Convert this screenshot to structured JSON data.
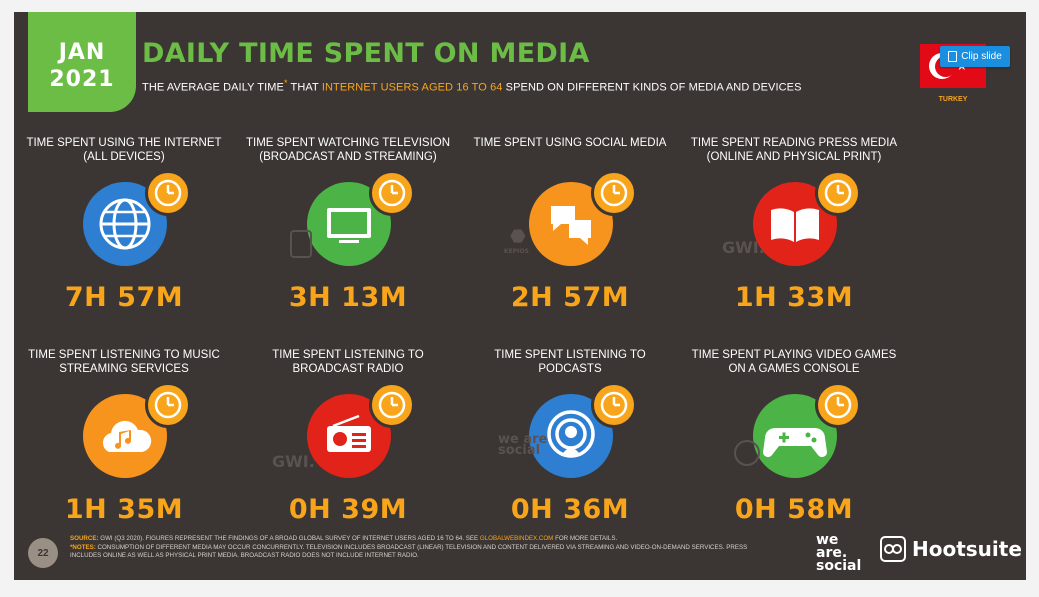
{
  "header": {
    "badge_month": "JAN",
    "badge_year": "2021",
    "title": "DAILY TIME SPENT ON MEDIA",
    "subtitle_part1": "THE AVERAGE DAILY TIME",
    "subtitle_star": "*",
    "subtitle_part2": " THAT ",
    "subtitle_highlight": "INTERNET USERS AGED 16 TO 64",
    "subtitle_part3": " SPEND ON DIFFERENT KINDS OF MEDIA AND DEVICES",
    "country": "TURKEY",
    "clip_button_label": "Clip slide"
  },
  "tiles": [
    {
      "label": "TIME SPENT USING THE INTERNET (ALL DEVICES)",
      "value": "7H 57M",
      "icon": "globe-icon",
      "color": "#2e7fd1"
    },
    {
      "label": "TIME SPENT WATCHING TELEVISION (BROADCAST AND STREAMING)",
      "value": "3H 13M",
      "icon": "television-icon",
      "color": "#4cb446"
    },
    {
      "label": "TIME SPENT USING SOCIAL MEDIA",
      "value": "2H 57M",
      "icon": "chat-bubbles-icon",
      "color": "#f7941d"
    },
    {
      "label": "TIME SPENT READING PRESS MEDIA (ONLINE AND PHYSICAL PRINT)",
      "value": "1H 33M",
      "icon": "open-book-icon",
      "color": "#e2231a"
    },
    {
      "label": "TIME SPENT LISTENING TO MUSIC STREAMING SERVICES",
      "value": "1H 35M",
      "icon": "cloud-music-icon",
      "color": "#f7941d"
    },
    {
      "label": "TIME SPENT LISTENING TO BROADCAST RADIO",
      "value": "0H 39M",
      "icon": "radio-icon",
      "color": "#e2231a"
    },
    {
      "label": "TIME SPENT LISTENING TO PODCASTS",
      "value": "0H 36M",
      "icon": "podcast-icon",
      "color": "#2e7fd1"
    },
    {
      "label": "TIME SPENT PLAYING VIDEO GAMES ON A GAMES CONSOLE",
      "value": "0H 58M",
      "icon": "gamepad-icon",
      "color": "#4cb446"
    }
  ],
  "watermarks": {
    "gwi_1": "GWI.",
    "gwi_2": "GWI.",
    "kepios": "KEPIOS",
    "wearesocial": "we are social"
  },
  "footer": {
    "page_number": "22",
    "source_key": "SOURCE:",
    "source_text": " GWI (Q3 2020). FIGURES REPRESENT THE FINDINGS OF A BROAD GLOBAL SURVEY OF INTERNET USERS AGED 16 TO 64. SEE ",
    "source_link": "GLOBALWEBINDEX.COM",
    "source_tail": " FOR MORE DETAILS.",
    "notes_key": "*NOTES:",
    "notes_text": " CONSUMPTION OF DIFFERENT MEDIA MAY OCCUR CONCURRENTLY. TELEVISION INCLUDES BROADCAST (LINEAR) TELEVISION AND CONTENT DELIVERED VIA STREAMING AND VIDEO-ON-DEMAND SERVICES. PRESS INCLUDES ONLINE AS WELL AS PHYSICAL PRINT MEDIA. BROADCAST RADIO DOES NOT INCLUDE INTERNET RADIO.",
    "logo_we": "we",
    "logo_are": "are.",
    "logo_social": "social",
    "logo_hootsuite": "Hootsuite"
  }
}
